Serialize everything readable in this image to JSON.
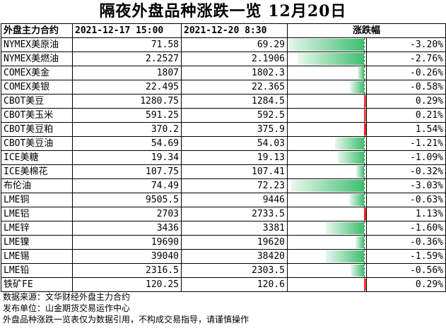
{
  "title": "隔夜外盘品种涨跌一览  12月20日",
  "table": {
    "headers": [
      "外盘主力合约",
      "2021-12-17 15:00",
      "2021-12-20 8:30",
      "涨跌幅"
    ],
    "rows": [
      {
        "name": "NYMEX美原油",
        "prev": "71.58",
        "curr": "69.29",
        "change": "-3.20%",
        "change_value": -3.2
      },
      {
        "name": "NYMEX美燃油",
        "prev": "2.2527",
        "curr": "2.1906",
        "change": "-2.76%",
        "change_value": -2.76
      },
      {
        "name": "COMEX美金",
        "prev": "1807",
        "curr": "1802.3",
        "change": "-0.26%",
        "change_value": -0.26
      },
      {
        "name": "COMEX美银",
        "prev": "22.495",
        "curr": "22.365",
        "change": "-0.58%",
        "change_value": -0.58
      },
      {
        "name": "CBOT美豆",
        "prev": "1280.75",
        "curr": "1284.5",
        "change": "0.29%",
        "change_value": 0.29
      },
      {
        "name": "CBOT美玉米",
        "prev": "591.25",
        "curr": "592.5",
        "change": "0.21%",
        "change_value": 0.21
      },
      {
        "name": "CBOT美豆粕",
        "prev": "370.2",
        "curr": "375.9",
        "change": "1.54%",
        "change_value": 1.54
      },
      {
        "name": "CBOT美豆油",
        "prev": "54.69",
        "curr": "54.03",
        "change": "-1.21%",
        "change_value": -1.21
      },
      {
        "name": "ICE美糖",
        "prev": "19.34",
        "curr": "19.13",
        "change": "-1.09%",
        "change_value": -1.09
      },
      {
        "name": "ICE美棉花",
        "prev": "107.75",
        "curr": "107.41",
        "change": "-0.32%",
        "change_value": -0.32
      },
      {
        "name": "布伦油",
        "prev": "74.49",
        "curr": "72.23",
        "change": "-3.03%",
        "change_value": -3.03
      },
      {
        "name": "LME铜",
        "prev": "9505.5",
        "curr": "9446",
        "change": "-0.63%",
        "change_value": -0.63
      },
      {
        "name": "LME铝",
        "prev": "2703",
        "curr": "2733.5",
        "change": "1.13%",
        "change_value": 1.13
      },
      {
        "name": "LME锌",
        "prev": "3436",
        "curr": "3381",
        "change": "-1.60%",
        "change_value": -1.6
      },
      {
        "name": "LME镍",
        "prev": "19690",
        "curr": "19620",
        "change": "-0.36%",
        "change_value": -0.36
      },
      {
        "name": "LME锡",
        "prev": "39040",
        "curr": "38420",
        "change": "-1.59%",
        "change_value": -1.59
      },
      {
        "name": "LME铅",
        "prev": "2316.5",
        "curr": "2303.5",
        "change": "-0.56%",
        "change_value": -0.56
      },
      {
        "name": "铁矿FE",
        "prev": "120.25",
        "curr": "120.6",
        "change": "0.29%",
        "change_value": 0.29
      }
    ]
  },
  "footer": [
    "数据来源：文华财经外盘主力合约",
    "发布单位：山金期货交易运作中心",
    "外盘品种涨跌一览表仅为数据引用，不构成交易指导，请谨慎操作"
  ],
  "colors": {
    "negative": "#3fbf6f",
    "positive": "#ff1a1a"
  }
}
